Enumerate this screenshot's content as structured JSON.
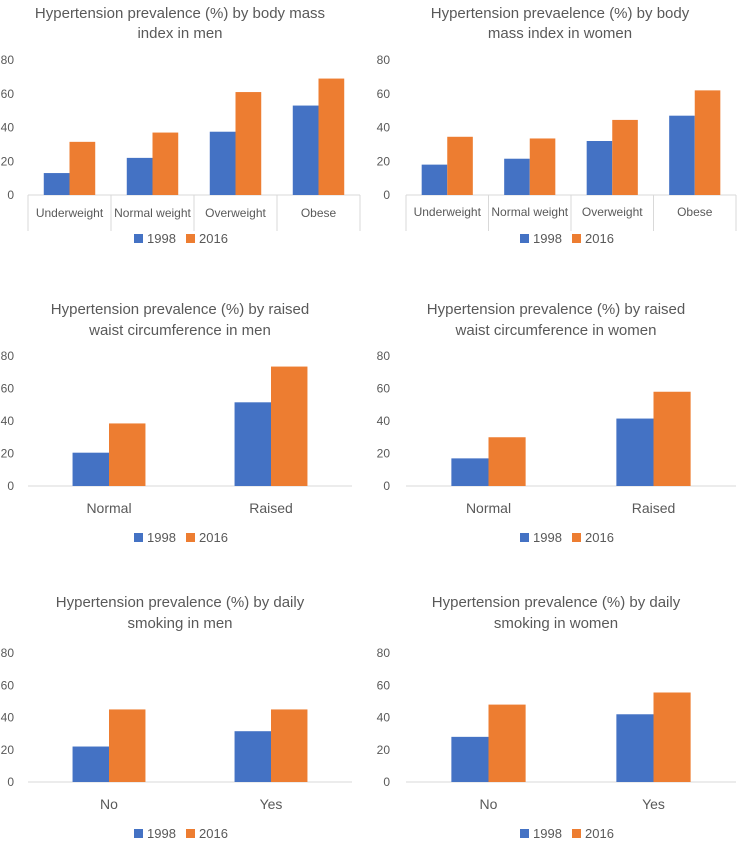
{
  "colors": {
    "series1": "#4472C4",
    "series2": "#ED7D31",
    "axis": "#D9D9D9",
    "text": "#595959"
  },
  "chart_data": [
    {
      "type": "bar",
      "title_lines": [
        "Hypertension prevalence (%) by body mass",
        "index in men"
      ],
      "categories": [
        "Underweight",
        "Normal weight",
        "Overweight",
        "Obese"
      ],
      "series": [
        {
          "name": "1998",
          "values": [
            13,
            22,
            37.5,
            53
          ]
        },
        {
          "name": "2016",
          "values": [
            31.5,
            37,
            61,
            69
          ]
        }
      ],
      "yticks": [
        "0",
        "20",
        "40",
        "60",
        "80"
      ],
      "ylim": [
        0,
        80
      ],
      "legend_position": "bottom"
    },
    {
      "type": "bar",
      "title_lines": [
        "Hypertension prevaelence (%) by body",
        "mass index in women"
      ],
      "categories": [
        "Underweight",
        "Normal weight",
        "Overweight",
        "Obese"
      ],
      "series": [
        {
          "name": "1998",
          "values": [
            18,
            21.5,
            32,
            47
          ]
        },
        {
          "name": "2016",
          "values": [
            34.5,
            33.5,
            44.5,
            62
          ]
        }
      ],
      "yticks": [
        "0",
        "20",
        "40",
        "60",
        "80"
      ],
      "ylim": [
        0,
        80
      ],
      "legend_position": "bottom"
    },
    {
      "type": "bar",
      "title_lines": [
        "Hypertension prevalence (%) by raised",
        "waist circumference in men"
      ],
      "categories": [
        "Normal",
        "Raised"
      ],
      "series": [
        {
          "name": "1998",
          "values": [
            20.5,
            51.5
          ]
        },
        {
          "name": "2016",
          "values": [
            38.5,
            73.5
          ]
        }
      ],
      "yticks": [
        "0",
        "20",
        "40",
        "60",
        "80"
      ],
      "ylim": [
        0,
        80
      ],
      "legend_position": "bottom"
    },
    {
      "type": "bar",
      "title_lines": [
        "Hypertension prevalence (%) by raised",
        "waist circumference in women"
      ],
      "categories": [
        "Normal",
        "Raised"
      ],
      "series": [
        {
          "name": "1998",
          "values": [
            17,
            41.5
          ]
        },
        {
          "name": "2016",
          "values": [
            30,
            58
          ]
        }
      ],
      "yticks": [
        "0",
        "20",
        "40",
        "60",
        "80"
      ],
      "ylim": [
        0,
        80
      ],
      "legend_position": "bottom"
    },
    {
      "type": "bar",
      "title_lines": [
        "Hypertension prevalence (%) by daily",
        "smoking in men"
      ],
      "categories": [
        "No",
        "Yes"
      ],
      "series": [
        {
          "name": "1998",
          "values": [
            22,
            31.5
          ]
        },
        {
          "name": "2016",
          "values": [
            45,
            45
          ]
        }
      ],
      "yticks": [
        "0",
        "20",
        "40",
        "60",
        "80"
      ],
      "ylim": [
        0,
        80
      ],
      "legend_position": "bottom"
    },
    {
      "type": "bar",
      "title_lines": [
        "Hypertension prevalence (%) by daily",
        "smoking in women"
      ],
      "categories": [
        "No",
        "Yes"
      ],
      "series": [
        {
          "name": "1998",
          "values": [
            28,
            42
          ]
        },
        {
          "name": "2016",
          "values": [
            48,
            55.5
          ]
        }
      ],
      "yticks": [
        "0",
        "20",
        "40",
        "60",
        "80"
      ],
      "ylim": [
        0,
        80
      ],
      "legend_position": "bottom"
    }
  ]
}
